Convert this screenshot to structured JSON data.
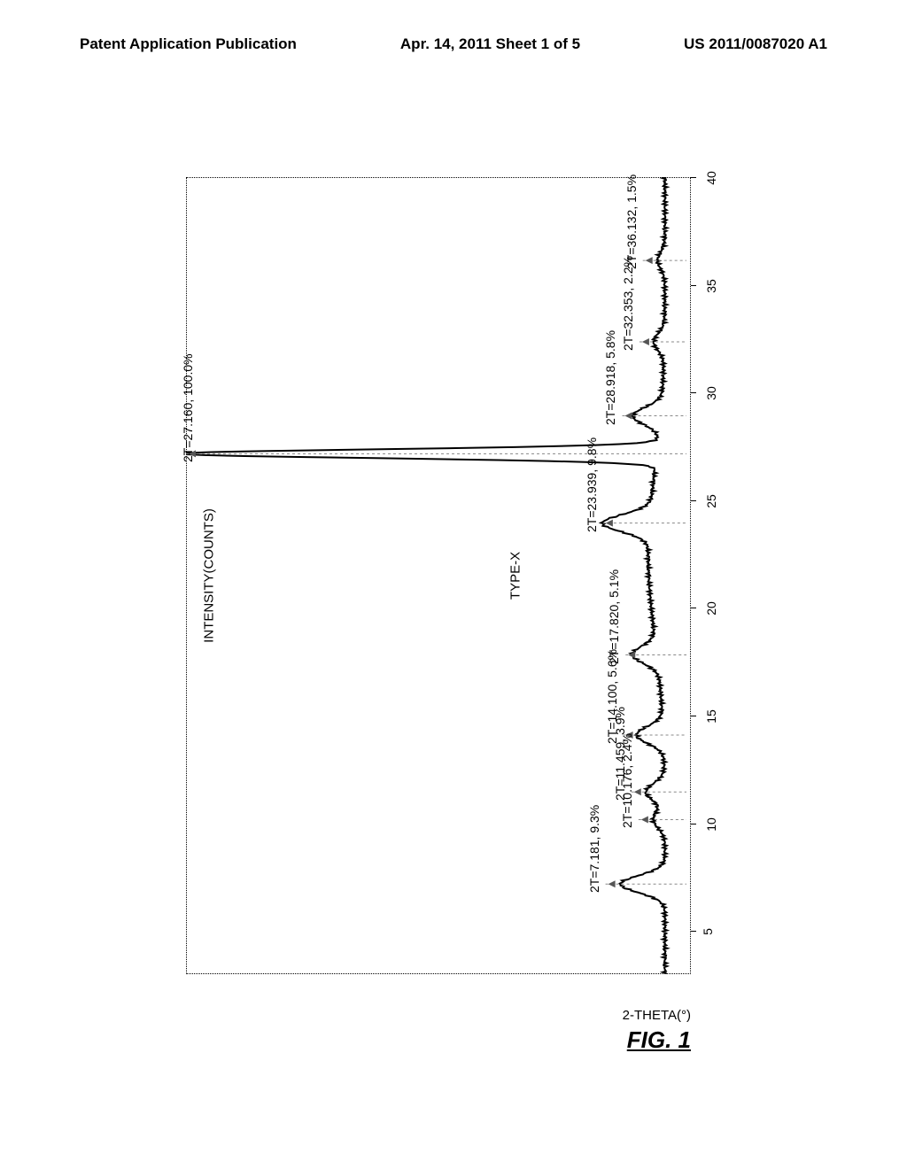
{
  "header": {
    "left": "Patent Application Publication",
    "center": "Apr. 14, 2011  Sheet 1 of 5",
    "right": "US 2011/0087020 A1"
  },
  "chart": {
    "type": "xrd_pattern",
    "y_axis_label": "INTENSITY(COUNTS)",
    "x_axis_label": "2-THETA(°)",
    "figure_label": "FIG. 1",
    "type_label": "TYPE-X",
    "x_min": 3,
    "x_max": 40,
    "x_ticks": [
      5,
      10,
      15,
      20,
      25,
      30,
      35,
      40
    ],
    "background_color": "#ffffff",
    "line_color": "#000000",
    "line_width": 2,
    "peaks": [
      {
        "two_theta": 7.181,
        "intensity_pct": 9.3,
        "label": "2T=7.181, 9.3%"
      },
      {
        "two_theta": 10.176,
        "intensity_pct": 2.4,
        "label": "2T=10.176, 2.4%"
      },
      {
        "two_theta": 11.459,
        "intensity_pct": 3.9,
        "label": "2T=11.459, 3.9%"
      },
      {
        "two_theta": 14.1,
        "intensity_pct": 5.6,
        "label": "2T=14.100, 5.6%"
      },
      {
        "two_theta": 17.82,
        "intensity_pct": 5.1,
        "label": "2T=17.820, 5.1%"
      },
      {
        "two_theta": 23.939,
        "intensity_pct": 9.8,
        "label": "2T=23.939, 9.8%"
      },
      {
        "two_theta": 27.16,
        "intensity_pct": 100.0,
        "label": "2T=27.160, 100.0%"
      },
      {
        "two_theta": 28.918,
        "intensity_pct": 5.8,
        "label": "2T=28.918, 5.8%"
      },
      {
        "two_theta": 32.353,
        "intensity_pct": 2.2,
        "label": "2T=32.353, 2.2%"
      },
      {
        "two_theta": 36.132,
        "intensity_pct": 1.5,
        "label": "2T=36.132, 1.5%"
      }
    ]
  }
}
